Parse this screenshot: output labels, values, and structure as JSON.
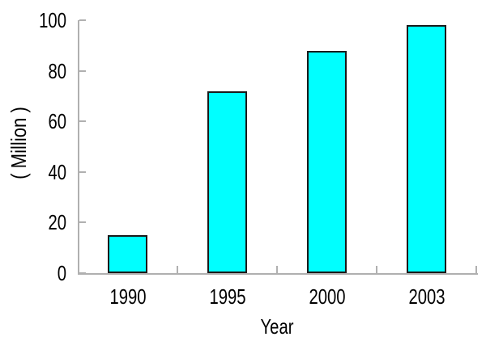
{
  "chart_data": {
    "type": "bar",
    "title": "",
    "categories": [
      "1990",
      "1995",
      "2000",
      "2003"
    ],
    "values": [
      15,
      72,
      88,
      98
    ],
    "xlabel": "Year",
    "ylabel": "( Million )",
    "ylim": [
      0,
      100
    ],
    "yticks": [
      0,
      20,
      40,
      60,
      80,
      100
    ],
    "grid": false,
    "legend_position": "none",
    "colors": {
      "bar_fill": "#00ffff",
      "bar_border": "#1a1a1a",
      "axis": "#b0b0b0",
      "text": "#000000",
      "background": "#ffffff"
    }
  }
}
